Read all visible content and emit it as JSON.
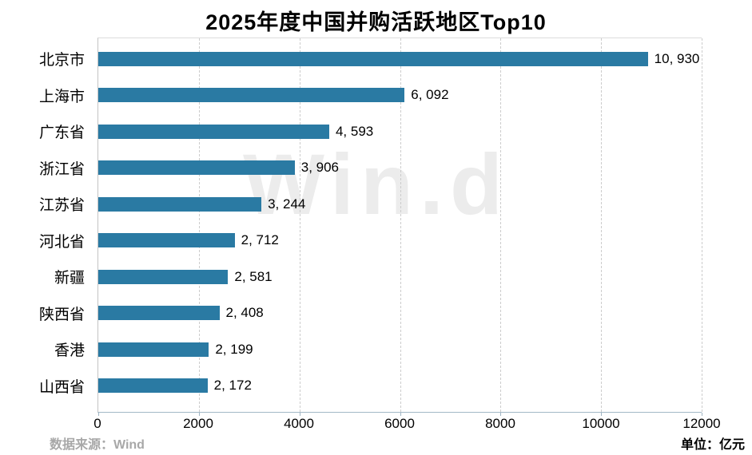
{
  "title": "2025年度中国并购活跃地区Top10",
  "watermark": "Win.d",
  "footer": {
    "source": "数据来源：Wind",
    "unit": "单位：亿元"
  },
  "colors": {
    "bar": "#2a7aa3",
    "axis_bottom": "#a3b8c6",
    "axis_left": "#c4c4c4",
    "grid": "#cccccc",
    "watermark": "#ececec",
    "source_text": "#a8a8a8"
  },
  "chart_data": {
    "type": "bar",
    "orientation": "horizontal",
    "title": "2025年度中国并购活跃地区Top10",
    "categories": [
      "北京市",
      "上海市",
      "广东省",
      "浙江省",
      "江苏省",
      "河北省",
      "新疆",
      "陕西省",
      "香港",
      "山西省"
    ],
    "values": [
      10930,
      6092,
      4593,
      3906,
      3244,
      2712,
      2581,
      2408,
      2199,
      2172
    ],
    "value_labels": [
      "10, 930",
      "6, 092",
      "4, 593",
      "3, 906",
      "3, 244",
      "2, 712",
      "2, 581",
      "2, 408",
      "2, 199",
      "2, 172"
    ],
    "xlabel": "",
    "ylabel": "",
    "xlim": [
      0,
      12000
    ],
    "x_ticks": [
      0,
      2000,
      4000,
      6000,
      8000,
      10000,
      12000
    ],
    "grid": "vertical-dashed",
    "legend": "none",
    "unit": "亿元"
  }
}
